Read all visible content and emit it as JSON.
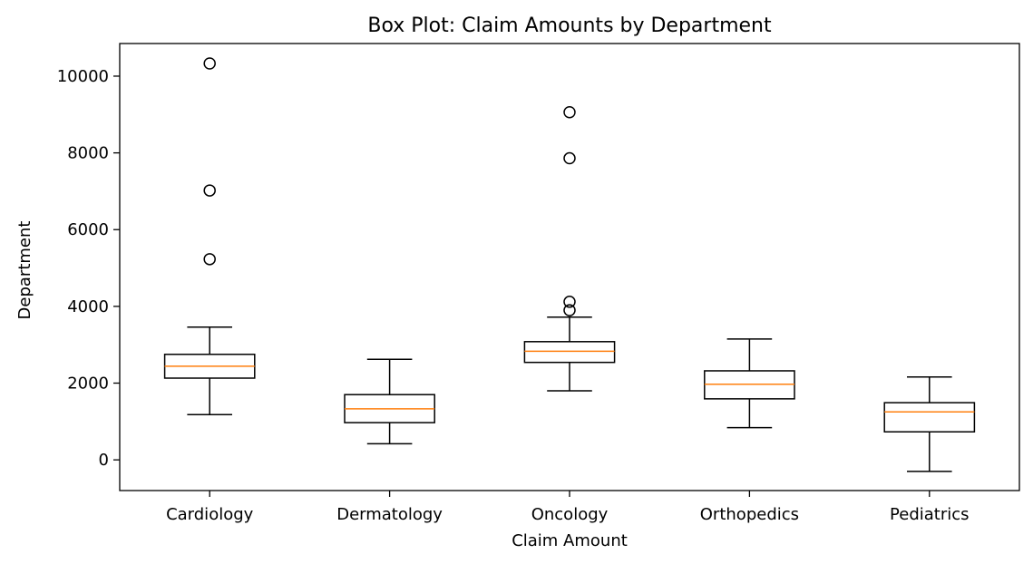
{
  "chart_data": {
    "type": "box",
    "title": "Box Plot: Claim Amounts by Department",
    "xlabel": "Claim Amount",
    "ylabel": "Department",
    "ylim": [
      -800,
      10850
    ],
    "yticks": [
      0,
      2000,
      4000,
      6000,
      8000,
      10000
    ],
    "categories": [
      "Cardiology",
      "Dermatology",
      "Oncology",
      "Orthopedics",
      "Pediatrics"
    ],
    "boxes": [
      {
        "name": "Cardiology",
        "whisker_low": 1180,
        "q1": 2130,
        "median": 2440,
        "q3": 2750,
        "whisker_high": 3460,
        "outliers": [
          5230,
          7020,
          10330
        ]
      },
      {
        "name": "Dermatology",
        "whisker_low": 420,
        "q1": 970,
        "median": 1330,
        "q3": 1700,
        "whisker_high": 2620,
        "outliers": []
      },
      {
        "name": "Oncology",
        "whisker_low": 1800,
        "q1": 2540,
        "median": 2830,
        "q3": 3080,
        "whisker_high": 3720,
        "outliers": [
          3900,
          4120,
          7860,
          9060
        ]
      },
      {
        "name": "Orthopedics",
        "whisker_low": 840,
        "q1": 1590,
        "median": 1970,
        "q3": 2320,
        "whisker_high": 3150,
        "outliers": []
      },
      {
        "name": "Pediatrics",
        "whisker_low": -300,
        "q1": 730,
        "median": 1250,
        "q3": 1490,
        "whisker_high": 2160,
        "outliers": []
      }
    ],
    "colors": {
      "box": "#000000",
      "median": "#ff7f0e",
      "outlier": "#000000"
    },
    "grid": false
  }
}
